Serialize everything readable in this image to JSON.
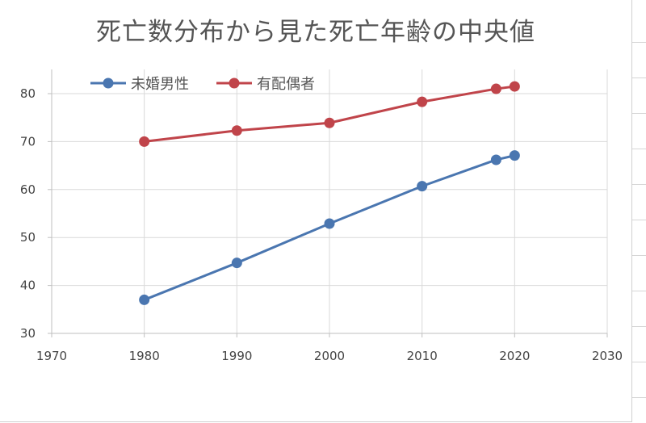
{
  "chart_data": {
    "type": "line",
    "title": "死亡数分布から見た死亡年齢の中央値",
    "xlim": [
      1970,
      2030
    ],
    "ylim": [
      30,
      85
    ],
    "x_ticks": [
      1970,
      1980,
      1990,
      2000,
      2010,
      2020,
      2030
    ],
    "y_ticks": [
      30,
      40,
      50,
      60,
      70,
      80
    ],
    "grid": true,
    "legend_position": "top-left",
    "series": [
      {
        "name": "未婚男性",
        "color": "#4a76b0",
        "x": [
          1980,
          1990,
          2000,
          2010,
          2018,
          2020
        ],
        "y": [
          37.0,
          44.7,
          52.9,
          60.7,
          66.2,
          67.1
        ]
      },
      {
        "name": "有配偶者",
        "color": "#c0444a",
        "x": [
          1980,
          1990,
          2000,
          2010,
          2018,
          2020
        ],
        "y": [
          70.0,
          72.3,
          73.9,
          78.3,
          81.0,
          81.5
        ]
      }
    ]
  }
}
